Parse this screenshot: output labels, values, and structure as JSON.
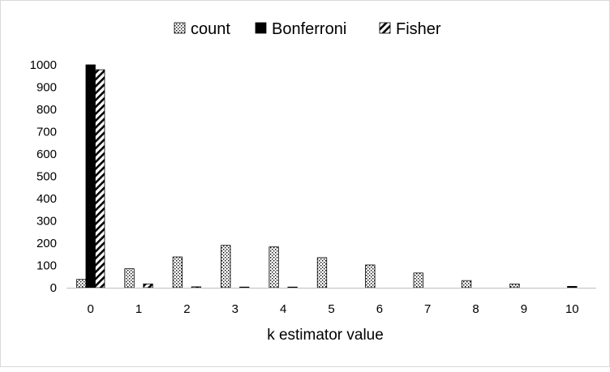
{
  "chart_data": {
    "type": "bar",
    "xlabel": "k estimator value",
    "ylabel": "",
    "categories": [
      "0",
      "1",
      "2",
      "3",
      "4",
      "5",
      "6",
      "7",
      "8",
      "9",
      "10"
    ],
    "ylim": [
      0,
      1000
    ],
    "yticks": [
      0,
      100,
      200,
      300,
      400,
      500,
      600,
      700,
      800,
      900,
      1000
    ],
    "grid": false,
    "legend_position": "top",
    "series": [
      {
        "name": "count",
        "pattern": "dots",
        "values": [
          37,
          85,
          138,
          190,
          183,
          135,
          102,
          66,
          32,
          17,
          0
        ]
      },
      {
        "name": "Bonferroni",
        "pattern": "solid",
        "values": [
          1000,
          0,
          0,
          0,
          0,
          0,
          0,
          0,
          0,
          0,
          6
        ]
      },
      {
        "name": "Fisher",
        "pattern": "hatch",
        "values": [
          978,
          17,
          4,
          3,
          3,
          0,
          0,
          0,
          0,
          0,
          0
        ]
      }
    ]
  }
}
